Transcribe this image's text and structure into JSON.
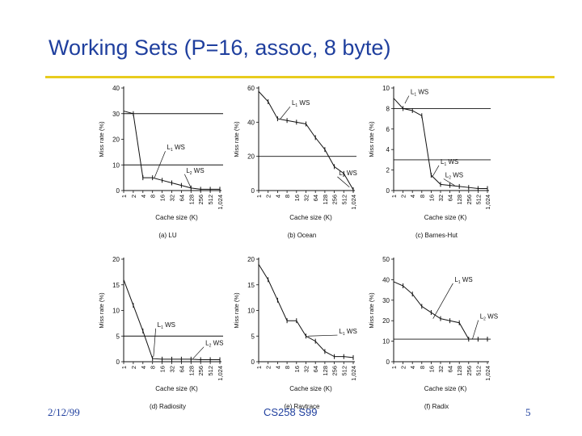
{
  "slide": {
    "title": "Working Sets (P=16, assoc, 8 byte)",
    "footer_left": "2/12/99",
    "footer_center": "CS258 S99",
    "footer_right": "5",
    "accent_color": "#e8cc1e",
    "title_color": "#1f3f9e"
  },
  "chart_data": [
    {
      "type": "line",
      "caption": "(a) LU",
      "xlabel": "Cache size (K)",
      "ylabel": "Miss rate (%)",
      "x": [
        "1",
        "2",
        "4",
        "8",
        "16",
        "32",
        "64",
        "128",
        "256",
        "512",
        "1,024"
      ],
      "values": [
        31,
        30,
        5,
        5,
        4,
        3,
        2,
        1,
        0.5,
        0.5,
        0.5
      ],
      "ylim": [
        0,
        40
      ],
      "yticks": [
        0,
        10,
        20,
        30,
        40
      ],
      "ws_levels": [
        30,
        10
      ],
      "annotations": [
        {
          "label": "L1 WS",
          "text_x": 4.5,
          "text_y": 16,
          "point_x": 3.2,
          "point_y": 5
        },
        {
          "label": "L2 WS",
          "text_x": 6.5,
          "text_y": 7,
          "point_x": 7,
          "point_y": 1
        }
      ]
    },
    {
      "type": "line",
      "caption": "(b) Ocean",
      "xlabel": "Cache size (K)",
      "ylabel": "Miss rate (%)",
      "x": [
        "1",
        "2",
        "4",
        "8",
        "16",
        "32",
        "64",
        "128",
        "256",
        "512",
        "1,024"
      ],
      "values": [
        58,
        52,
        42,
        41,
        40,
        39,
        31,
        24,
        14,
        10,
        0.5
      ],
      "ylim": [
        0,
        60
      ],
      "yticks": [
        0,
        20,
        40,
        60
      ],
      "ws_levels": [
        20
      ],
      "annotations": [
        {
          "label": "L1 WS",
          "text_x": 3.5,
          "text_y": 50,
          "point_x": 2.3,
          "point_y": 42
        },
        {
          "label": "L2 WS",
          "text_x": 8.5,
          "text_y": 9,
          "point_x": 9.6,
          "point_y": 2
        }
      ]
    },
    {
      "type": "line",
      "caption": "(c) Barnes-Hut",
      "xlabel": "Cache size (K)",
      "ylabel": "Miss rate (%)",
      "x": [
        "1",
        "2",
        "4",
        "8",
        "16",
        "32",
        "64",
        "128",
        "256",
        "512",
        "1,024"
      ],
      "values": [
        9,
        8,
        7.8,
        7.3,
        1.5,
        0.6,
        0.5,
        0.4,
        0.3,
        0.2,
        0.2
      ],
      "ylim": [
        0,
        10
      ],
      "yticks": [
        0,
        2,
        4,
        6,
        8,
        10
      ],
      "ws_levels": [
        8,
        3
      ],
      "annotations": [
        {
          "label": "L1 WS",
          "text_x": 1.8,
          "text_y": 9.4,
          "point_x": 1.2,
          "point_y": 8.5
        },
        {
          "label": "L1 WS",
          "text_x": 5,
          "text_y": 2.6,
          "point_x": 4.1,
          "point_y": 1.3
        },
        {
          "label": "L2 WS",
          "text_x": 5.5,
          "text_y": 1.3,
          "point_x": 6.5,
          "point_y": 0.5
        }
      ]
    },
    {
      "type": "line",
      "caption": "(d) Radiosity",
      "xlabel": "Cache size (K)",
      "ylabel": "Miss rate (%)",
      "x": [
        "1",
        "2",
        "4",
        "8",
        "16",
        "32",
        "64",
        "128",
        "256",
        "512",
        "1,024"
      ],
      "values": [
        16,
        11,
        6,
        0.6,
        0.5,
        0.5,
        0.5,
        0.5,
        0.4,
        0.4,
        0.4
      ],
      "ylim": [
        0,
        20
      ],
      "yticks": [
        0,
        5,
        10,
        15,
        20
      ],
      "ws_levels": [
        5
      ],
      "annotations": [
        {
          "label": "L1 WS",
          "text_x": 3.5,
          "text_y": 6.8,
          "point_x": 3.1,
          "point_y": 1
        },
        {
          "label": "L2 WS",
          "text_x": 8.5,
          "text_y": 3.2,
          "point_x": 7.2,
          "point_y": 0.6
        }
      ]
    },
    {
      "type": "line",
      "caption": "(e) Raytrace",
      "xlabel": "Cache size (K)",
      "ylabel": "Miss rate (%)",
      "x": [
        "1",
        "2",
        "4",
        "8",
        "16",
        "32",
        "64",
        "128",
        "256",
        "512",
        "1,024"
      ],
      "values": [
        19,
        16,
        12,
        8,
        8,
        5,
        4,
        2,
        1,
        1,
        0.8
      ],
      "ylim": [
        0,
        20
      ],
      "yticks": [
        0,
        5,
        10,
        15,
        20
      ],
      "ws_levels": [],
      "annotations": [
        {
          "label": "L1 WS",
          "text_x": 8.5,
          "text_y": 5.5,
          "point_x": 5.2,
          "point_y": 5
        }
      ]
    },
    {
      "type": "line",
      "caption": "(f) Radix",
      "xlabel": "Cache size (K)",
      "ylabel": "Miss rate (%)",
      "x": [
        "1",
        "2",
        "4",
        "8",
        "16",
        "32",
        "64",
        "128",
        "256",
        "512",
        "1,024"
      ],
      "values": [
        39,
        37,
        33,
        27,
        24,
        21,
        20,
        19,
        11,
        11,
        11
      ],
      "ylim": [
        0,
        50
      ],
      "yticks": [
        0,
        10,
        20,
        30,
        40,
        50
      ],
      "ws_levels": [
        11
      ],
      "annotations": [
        {
          "label": "L1 WS",
          "text_x": 6.5,
          "text_y": 39,
          "point_x": 4.2,
          "point_y": 21
        },
        {
          "label": "L2 WS",
          "text_x": 9.2,
          "text_y": 21,
          "point_x": 8.4,
          "point_y": 11
        }
      ]
    }
  ]
}
